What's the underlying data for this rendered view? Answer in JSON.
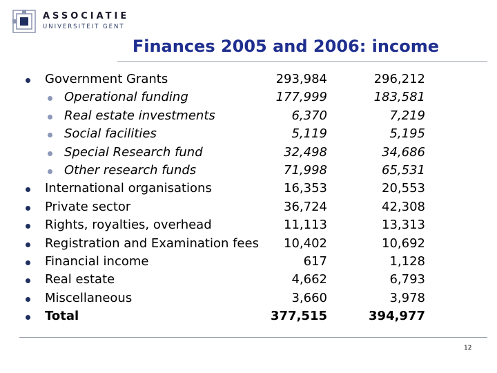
{
  "logo": {
    "line1": "ASSOCIATIE",
    "line2": "UNIVERSITEIT GENT"
  },
  "slide": {
    "title": "Finances 2005 and 2006: income",
    "page_number": "12"
  },
  "rows": [
    {
      "label": "Government Grants",
      "v2005": "293,984",
      "v2006": "296,212",
      "level": 1
    },
    {
      "label": "Operational funding",
      "v2005": "177,999",
      "v2006": "183,581",
      "level": 2
    },
    {
      "label": "Real estate investments",
      "v2005": "6,370",
      "v2006": "7,219",
      "level": 2
    },
    {
      "label": "Social facilities",
      "v2005": "5,119",
      "v2006": "5,195",
      "level": 2
    },
    {
      "label": "Special Research fund",
      "v2005": "32,498",
      "v2006": "34,686",
      "level": 2
    },
    {
      "label": "Other research funds",
      "v2005": "71,998",
      "v2006": "65,531",
      "level": 2
    },
    {
      "label": "International organisations",
      "v2005": "16,353",
      "v2006": "20,553",
      "level": 1
    },
    {
      "label": "Private sector",
      "v2005": "36,724",
      "v2006": "42,308",
      "level": 1
    },
    {
      "label": "Rights, royalties, overhead",
      "v2005": "11,113",
      "v2006": "13,313",
      "level": 1
    },
    {
      "label": "Registration and Examination fees",
      "v2005": "10,402",
      "v2006": "10,692",
      "level": 1
    },
    {
      "label": "Financial income",
      "v2005": "617",
      "v2006": "1,128",
      "level": 1
    },
    {
      "label": "Real estate",
      "v2005": "4,662",
      "v2006": "6,793",
      "level": 1
    },
    {
      "label": "Miscellaneous",
      "v2005": "3,660",
      "v2006": "3,978",
      "level": 1
    },
    {
      "label": "Total",
      "v2005": "377,515",
      "v2006": "394,977",
      "level": 1,
      "bold": true
    }
  ],
  "colors": {
    "title": "#1f2f8f",
    "bullet_main": "#1f2f5f",
    "bullet_sub": "#8c98b8",
    "rule": "#9aa0ad"
  }
}
